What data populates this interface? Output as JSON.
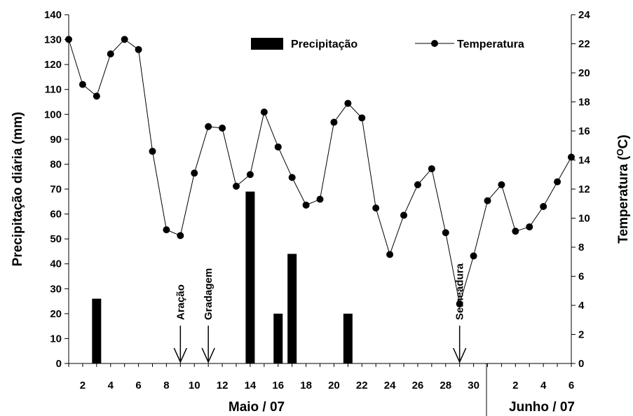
{
  "chart_data": {
    "type": "bar+line",
    "days": [
      "1",
      "2",
      "3",
      "4",
      "5",
      "6",
      "7",
      "8",
      "9",
      "10",
      "11",
      "12",
      "13",
      "14",
      "15",
      "16",
      "17",
      "18",
      "19",
      "20",
      "21",
      "22",
      "23",
      "24",
      "25",
      "26",
      "27",
      "28",
      "29",
      "30",
      "31",
      "1",
      "2",
      "3",
      "4",
      "5",
      "6"
    ],
    "series": [
      {
        "name": "Precipitação",
        "type": "bar",
        "axis": "left",
        "values": [
          0,
          0,
          26,
          0,
          0,
          0,
          0,
          0,
          0,
          0,
          0,
          0,
          0,
          69,
          0,
          20,
          44,
          0,
          0,
          0,
          20,
          0,
          0,
          0,
          0,
          0,
          0,
          0,
          0,
          0,
          0,
          0,
          0,
          0,
          0,
          0,
          0
        ]
      },
      {
        "name": "Temperatura",
        "type": "line",
        "axis": "right",
        "values": [
          22.3,
          19.2,
          18.4,
          21.3,
          22.3,
          21.6,
          14.6,
          9.2,
          8.8,
          13.1,
          16.3,
          16.2,
          12.2,
          13.0,
          17.3,
          14.9,
          12.8,
          10.9,
          11.3,
          16.6,
          17.9,
          16.9,
          10.7,
          7.5,
          10.2,
          12.3,
          13.4,
          9.0,
          4.1,
          7.4,
          11.2,
          12.3,
          9.1,
          9.4,
          10.8,
          12.5,
          14.2
        ]
      }
    ],
    "y_left": {
      "label": "Precipitação diária (mm)",
      "min": 0,
      "max": 140,
      "ticks": [
        "0",
        "10",
        "20",
        "30",
        "40",
        "50",
        "60",
        "70",
        "80",
        "90",
        "100",
        "110",
        "120",
        "130",
        "140"
      ]
    },
    "y_right": {
      "label": "Temperatura (",
      "label_sup": "O",
      "label_suffix": "C)",
      "min": 0,
      "max": 24,
      "ticks": [
        "0",
        "2",
        "4",
        "6",
        "8",
        "10",
        "12",
        "14",
        "16",
        "18",
        "20",
        "22",
        "24"
      ]
    },
    "x_ticks_may": [
      "2",
      "4",
      "6",
      "8",
      "10",
      "12",
      "14",
      "16",
      "18",
      "20",
      "22",
      "24",
      "26",
      "28",
      "30"
    ],
    "x_ticks_june": [
      "2",
      "4",
      "6"
    ],
    "month_labels": [
      "Maio / 07",
      "Junho / 07"
    ],
    "annotations": [
      {
        "text": "Aração",
        "day_index": 8
      },
      {
        "text": "Gradagem",
        "day_index": 10
      },
      {
        "text": "Semeadura",
        "day_index": 28
      }
    ],
    "legend": {
      "position": "top-center"
    },
    "grid": false
  }
}
